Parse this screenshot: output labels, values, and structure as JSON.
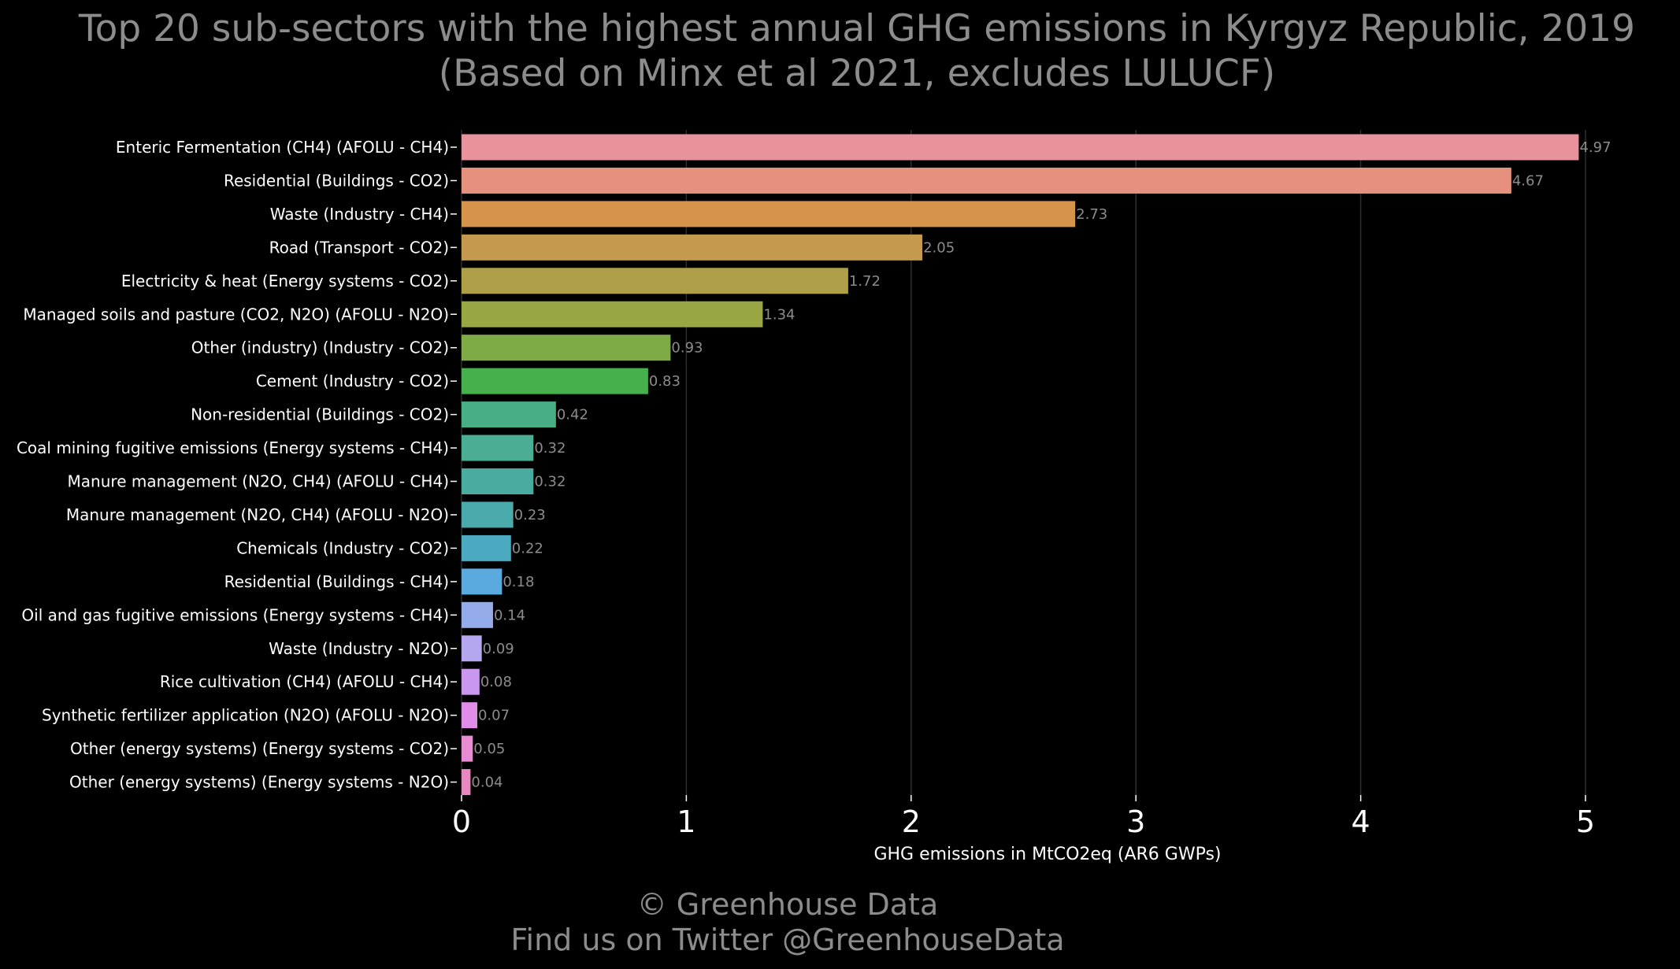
{
  "chart_data": {
    "type": "bar",
    "orientation": "horizontal",
    "title": "Top 20 sub-sectors with the highest annual GHG emissions in Kyrgyz Republic, 2019",
    "subtitle": "(Based on Minx et al 2021, excludes LULUCF)",
    "xlabel": "GHG emissions in MtCO2eq (AR6 GWPs)",
    "ylabel": "",
    "xlim": [
      0,
      5
    ],
    "xticks": [
      0,
      1,
      2,
      3,
      4,
      5
    ],
    "grid": "vertical",
    "legend": "none",
    "categories": [
      "Enteric Fermentation (CH4) (AFOLU - CH4)",
      "Residential (Buildings - CO2)",
      "Waste (Industry - CH4)",
      "Road (Transport - CO2)",
      "Electricity & heat (Energy systems - CO2)",
      "Managed soils and pasture (CO2, N2O) (AFOLU - N2O)",
      "Other (industry) (Industry - CO2)",
      "Cement (Industry - CO2)",
      "Non-residential (Buildings - CO2)",
      "Coal mining fugitive emissions (Energy systems - CH4)",
      "Manure management (N2O, CH4) (AFOLU - CH4)",
      "Manure management (N2O, CH4) (AFOLU - N2O)",
      "Chemicals (Industry - CO2)",
      "Residential (Buildings - CH4)",
      "Oil and gas fugitive emissions (Energy systems - CH4)",
      "Waste (Industry - N2O)",
      "Rice cultivation (CH4) (AFOLU - CH4)",
      "Synthetic fertilizer application (N2O) (AFOLU - N2O)",
      "Other (energy systems) (Energy systems - CO2)",
      "Other (energy systems) (Energy systems - N2O)"
    ],
    "values": [
      4.97,
      4.67,
      2.73,
      2.05,
      1.72,
      1.34,
      0.93,
      0.83,
      0.42,
      0.32,
      0.32,
      0.23,
      0.22,
      0.18,
      0.14,
      0.09,
      0.08,
      0.07,
      0.05,
      0.04
    ],
    "value_labels": [
      "4.97",
      "4.67",
      "2.73",
      "2.05",
      "1.72",
      "1.34",
      "0.93",
      "0.83",
      "0.42",
      "0.32",
      "0.32",
      "0.23",
      "0.22",
      "0.18",
      "0.14",
      "0.09",
      "0.08",
      "0.07",
      "0.05",
      "0.04"
    ],
    "colors": [
      "#e8929e",
      "#e6917e",
      "#d6934c",
      "#c49b4e",
      "#ae9f48",
      "#9aa544",
      "#7fab46",
      "#46b14c",
      "#48ae86",
      "#4aad94",
      "#4aaca0",
      "#4babac",
      "#4caac0",
      "#5aaae0",
      "#95acea",
      "#b6a6ef",
      "#c998ee",
      "#e08de7",
      "#e88bd2",
      "#e888c0"
    ]
  },
  "credits": {
    "line1": "© Greenhouse Data",
    "line2": "Find us on Twitter @GreenhouseData"
  }
}
